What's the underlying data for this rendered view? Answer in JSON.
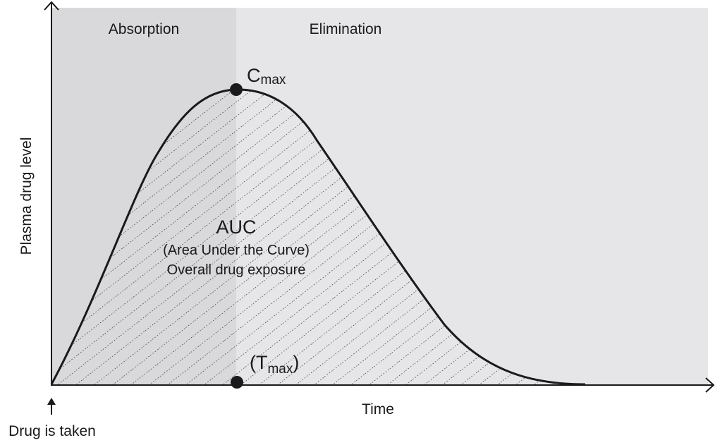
{
  "diagram": {
    "regions": {
      "absorption": "Absorption",
      "elimination": "Elimination"
    },
    "axes": {
      "y_label": "Plasma drug level",
      "x_label": "Time"
    },
    "peak": {
      "label": "C",
      "subscript": "max"
    },
    "tmax": {
      "open": "(T",
      "subscript": "max",
      "close": ")"
    },
    "auc": {
      "title": "AUC",
      "line1": "(Area Under the Curve)",
      "line2": "Overall drug exposure"
    },
    "start": {
      "label": "Drug is taken"
    },
    "colors": {
      "absorption_bg": "#d9d9dc",
      "elimination_bg": "#e6e6e9",
      "curve": "#1a1a1a",
      "hatch": "#1a1a1a"
    }
  }
}
